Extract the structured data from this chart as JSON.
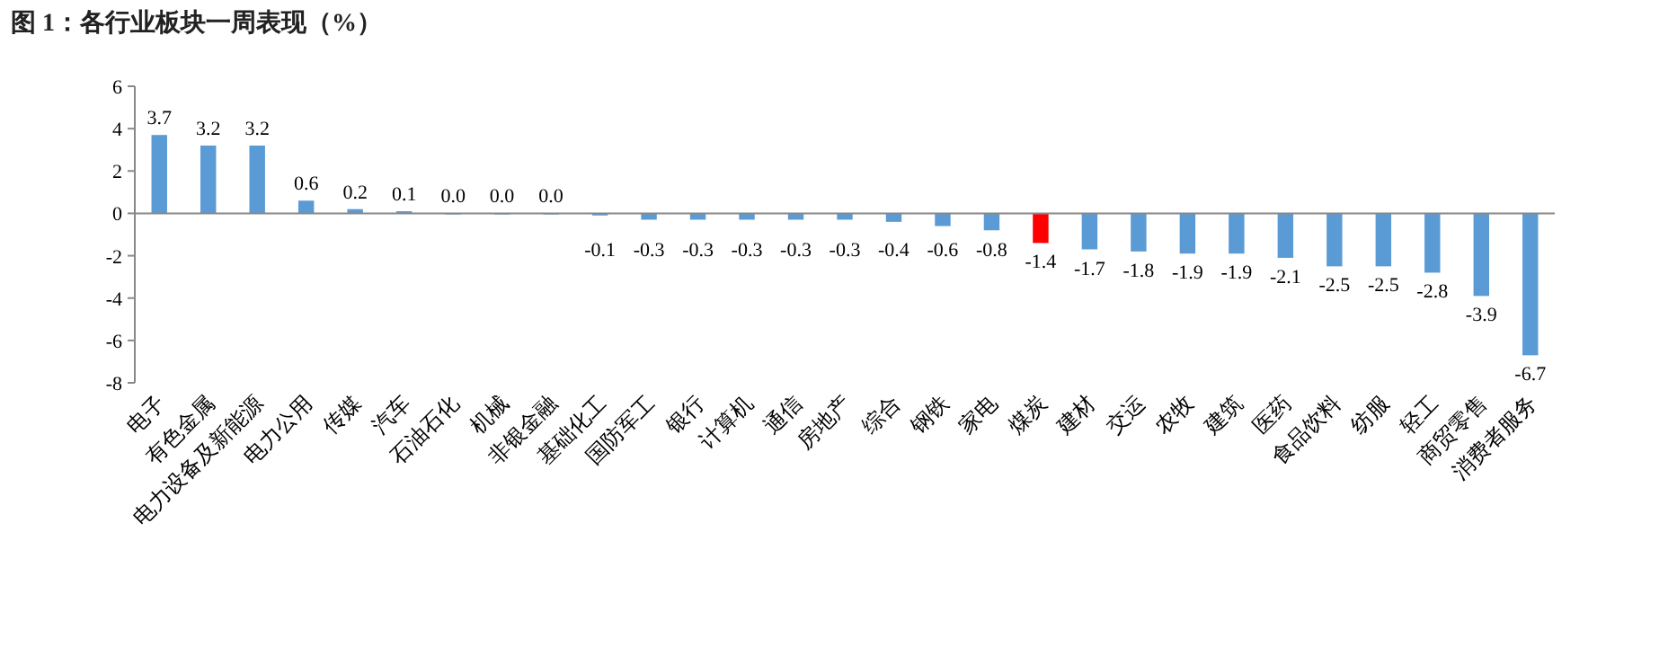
{
  "chart_data": {
    "type": "bar",
    "title": "图 1：各行业板块一周表现（%）",
    "categories": [
      "电子",
      "有色金属",
      "电力设备及新能源",
      "电力公用",
      "传媒",
      "汽车",
      "石油石化",
      "机械",
      "非银金融",
      "基础化工",
      "国防军工",
      "银行",
      "计算机",
      "通信",
      "房地产",
      "综合",
      "钢铁",
      "家电",
      "煤炭",
      "建材",
      "交运",
      "农牧",
      "建筑",
      "医药",
      "食品饮料",
      "纺服",
      "轻工",
      "商贸零售",
      "消费者服务"
    ],
    "values": [
      3.7,
      3.2,
      3.2,
      0.6,
      0.2,
      0.1,
      0.0,
      0.0,
      0.0,
      -0.1,
      -0.3,
      -0.3,
      -0.3,
      -0.3,
      -0.3,
      -0.4,
      -0.6,
      -0.8,
      -1.4,
      -1.7,
      -1.8,
      -1.9,
      -1.9,
      -2.1,
      -2.5,
      -2.5,
      -2.8,
      -3.9,
      -6.7
    ],
    "colors": [
      "#5b9bd5",
      "#5b9bd5",
      "#5b9bd5",
      "#5b9bd5",
      "#5b9bd5",
      "#5b9bd5",
      "#5b9bd5",
      "#5b9bd5",
      "#5b9bd5",
      "#5b9bd5",
      "#5b9bd5",
      "#5b9bd5",
      "#5b9bd5",
      "#5b9bd5",
      "#5b9bd5",
      "#5b9bd5",
      "#5b9bd5",
      "#5b9bd5",
      "#ff0000",
      "#5b9bd5",
      "#5b9bd5",
      "#5b9bd5",
      "#5b9bd5",
      "#5b9bd5",
      "#5b9bd5",
      "#5b9bd5",
      "#5b9bd5",
      "#5b9bd5",
      "#5b9bd5"
    ],
    "value_labels": [
      "3.7",
      "3.2",
      "3.2",
      "0.6",
      "0.2",
      "0.1",
      "0.0",
      "0.0",
      "0.0",
      "-0.1",
      "-0.3",
      "-0.3",
      "-0.3",
      "-0.3",
      "-0.3",
      "-0.4",
      "-0.6",
      "-0.8",
      "-1.4",
      "-1.7",
      "-1.8",
      "-1.9",
      "-1.9",
      "-2.1",
      "-2.5",
      "-2.5",
      "-2.8",
      "-3.9",
      "-6.7"
    ],
    "ylim": [
      -8,
      6
    ],
    "yticks": [
      -8,
      -6,
      -4,
      -2,
      0,
      2,
      4,
      6
    ]
  }
}
